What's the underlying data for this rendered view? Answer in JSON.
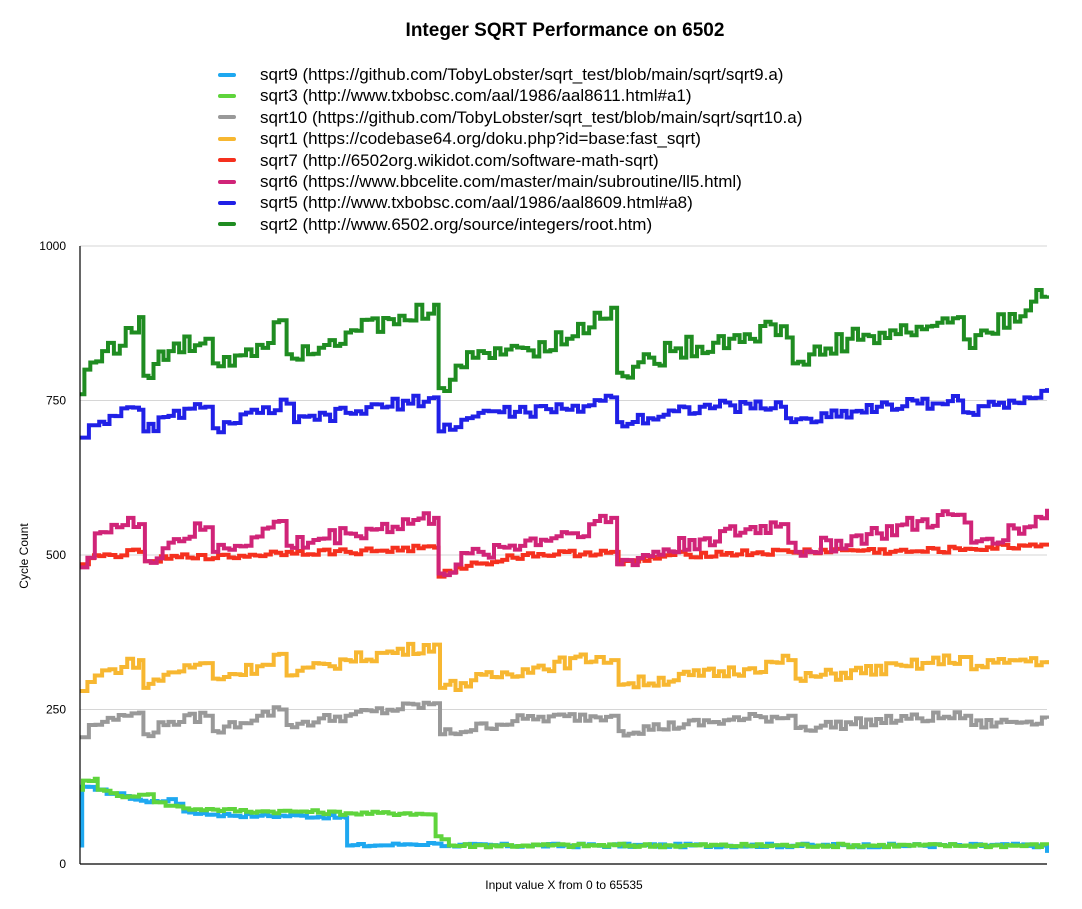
{
  "chart_data": {
    "type": "line",
    "title": "Integer SQRT Performance on 6502",
    "xlabel": "Input value X from 0 to 65535",
    "ylabel": "Cycle Count",
    "xlim": [
      0,
      65535
    ],
    "ylim": [
      0,
      1000
    ],
    "yticks": [
      "0",
      "250",
      "500",
      "750",
      "1000"
    ],
    "grid": true,
    "legend_position": "top",
    "series": [
      {
        "name": "sqrt9 (https://github.com/TobyLobster/sqrt_test/blob/main/sqrt/sqrt9.a)",
        "color": "#1ea8f0",
        "points": [
          [
            0,
            30
          ],
          [
            150,
            125
          ],
          [
            1000,
            120
          ],
          [
            3000,
            110
          ],
          [
            4500,
            100
          ],
          [
            6000,
            105
          ],
          [
            7000,
            85
          ],
          [
            9000,
            80
          ],
          [
            12000,
            78
          ],
          [
            15000,
            78
          ],
          [
            18000,
            75
          ],
          [
            18100,
            30
          ],
          [
            20000,
            30
          ],
          [
            22000,
            32
          ],
          [
            24000,
            33
          ],
          [
            25000,
            30
          ],
          [
            30000,
            30
          ],
          [
            40000,
            30
          ],
          [
            50000,
            30
          ],
          [
            60000,
            30
          ],
          [
            65000,
            30
          ],
          [
            65535,
            18
          ]
        ]
      },
      {
        "name": "sqrt3 (http://www.txbobsc.com/aal/1986/aal8611.html#a1)",
        "color": "#5fd43c",
        "points": [
          [
            0,
            120
          ],
          [
            200,
            135
          ],
          [
            1000,
            138
          ],
          [
            1200,
            120
          ],
          [
            2500,
            110
          ],
          [
            4000,
            112
          ],
          [
            4600,
            113
          ],
          [
            5000,
            100
          ],
          [
            7000,
            90
          ],
          [
            9000,
            88
          ],
          [
            12000,
            85
          ],
          [
            15000,
            85
          ],
          [
            18000,
            82
          ],
          [
            22000,
            82
          ],
          [
            24000,
            80
          ],
          [
            24100,
            45
          ],
          [
            24500,
            40
          ],
          [
            25000,
            30
          ],
          [
            30000,
            30
          ],
          [
            40000,
            30
          ],
          [
            50000,
            30
          ],
          [
            60000,
            30
          ],
          [
            65535,
            30
          ]
        ]
      },
      {
        "name": "sqrt10 (https://github.com/TobyLobster/sqrt_test/blob/main/sqrt/sqrt10.a)",
        "color": "#999999",
        "points": [
          [
            0,
            205
          ],
          [
            600,
            225
          ],
          [
            1500,
            230
          ],
          [
            3000,
            240
          ],
          [
            4000,
            245
          ],
          [
            4300,
            210
          ],
          [
            6000,
            230
          ],
          [
            8500,
            240
          ],
          [
            9000,
            215
          ],
          [
            12000,
            240
          ],
          [
            13500,
            250
          ],
          [
            14000,
            225
          ],
          [
            18000,
            240
          ],
          [
            24000,
            260
          ],
          [
            24400,
            210
          ],
          [
            30000,
            235
          ],
          [
            36000,
            240
          ],
          [
            36500,
            215
          ],
          [
            45000,
            235
          ],
          [
            48000,
            240
          ],
          [
            48500,
            220
          ],
          [
            56000,
            235
          ],
          [
            60000,
            240
          ],
          [
            60400,
            225
          ],
          [
            65535,
            235
          ]
        ]
      },
      {
        "name": "sqrt1 (https://codebase64.org/doku.php?id=base:fast_sqrt)",
        "color": "#f7b731",
        "points": [
          [
            0,
            280
          ],
          [
            1000,
            305
          ],
          [
            2000,
            315
          ],
          [
            4000,
            330
          ],
          [
            4300,
            285
          ],
          [
            6000,
            310
          ],
          [
            8500,
            325
          ],
          [
            9000,
            300
          ],
          [
            12000,
            320
          ],
          [
            13500,
            340
          ],
          [
            14000,
            305
          ],
          [
            18000,
            330
          ],
          [
            24000,
            355
          ],
          [
            24400,
            285
          ],
          [
            30000,
            315
          ],
          [
            35000,
            335
          ],
          [
            36000,
            330
          ],
          [
            36500,
            290
          ],
          [
            45000,
            315
          ],
          [
            48000,
            330
          ],
          [
            48500,
            300
          ],
          [
            56000,
            320
          ],
          [
            60000,
            335
          ],
          [
            60400,
            315
          ],
          [
            63000,
            330
          ],
          [
            65535,
            330
          ]
        ]
      },
      {
        "name": "sqrt7 (http://6502org.wikidot.com/software-math-sqrt)",
        "color": "#f5301e",
        "points": [
          [
            0,
            485
          ],
          [
            600,
            495
          ],
          [
            2000,
            500
          ],
          [
            4000,
            505
          ],
          [
            4400,
            490
          ],
          [
            8000,
            500
          ],
          [
            9000,
            495
          ],
          [
            14000,
            505
          ],
          [
            18000,
            505
          ],
          [
            24000,
            512
          ],
          [
            24300,
            465
          ],
          [
            25500,
            480
          ],
          [
            30000,
            500
          ],
          [
            36000,
            505
          ],
          [
            36500,
            485
          ],
          [
            40000,
            500
          ],
          [
            48000,
            505
          ],
          [
            52000,
            508
          ],
          [
            56000,
            505
          ],
          [
            60000,
            510
          ],
          [
            64000,
            515
          ],
          [
            65535,
            520
          ]
        ]
      },
      {
        "name": "sqrt6 (https://www.bbcelite.com/master/main/subroutine/ll5.html)",
        "color": "#d02478",
        "points": [
          [
            0,
            480
          ],
          [
            1000,
            535
          ],
          [
            2500,
            545
          ],
          [
            4000,
            550
          ],
          [
            4400,
            490
          ],
          [
            6000,
            520
          ],
          [
            8500,
            545
          ],
          [
            9000,
            505
          ],
          [
            12000,
            530
          ],
          [
            13500,
            555
          ],
          [
            14000,
            515
          ],
          [
            18000,
            535
          ],
          [
            24000,
            560
          ],
          [
            24300,
            470
          ],
          [
            27000,
            505
          ],
          [
            33000,
            535
          ],
          [
            36000,
            560
          ],
          [
            36400,
            485
          ],
          [
            42000,
            525
          ],
          [
            47500,
            550
          ],
          [
            48500,
            505
          ],
          [
            54000,
            535
          ],
          [
            59500,
            565
          ],
          [
            60400,
            520
          ],
          [
            64000,
            545
          ],
          [
            65535,
            575
          ]
        ]
      },
      {
        "name": "sqrt5 (http://www.txbobsc.com/aal/1986/aal8609.html#a8)",
        "color": "#2020e6",
        "points": [
          [
            0,
            690
          ],
          [
            600,
            710
          ],
          [
            2000,
            725
          ],
          [
            4000,
            735
          ],
          [
            4300,
            700
          ],
          [
            6000,
            725
          ],
          [
            8500,
            740
          ],
          [
            9000,
            705
          ],
          [
            12000,
            730
          ],
          [
            14000,
            745
          ],
          [
            14500,
            715
          ],
          [
            18000,
            730
          ],
          [
            24000,
            755
          ],
          [
            24300,
            700
          ],
          [
            27000,
            730
          ],
          [
            33000,
            735
          ],
          [
            36000,
            755
          ],
          [
            36400,
            715
          ],
          [
            42000,
            740
          ],
          [
            47500,
            740
          ],
          [
            48200,
            715
          ],
          [
            54000,
            740
          ],
          [
            59500,
            750
          ],
          [
            60200,
            730
          ],
          [
            64000,
            755
          ],
          [
            65535,
            770
          ]
        ]
      },
      {
        "name": "sqrt2 (http://www.6502.org/source/integers/root.htm)",
        "color": "#1f8c21",
        "points": [
          [
            0,
            760
          ],
          [
            300,
            800
          ],
          [
            1500,
            830
          ],
          [
            3500,
            860
          ],
          [
            4000,
            885
          ],
          [
            4300,
            790
          ],
          [
            6000,
            830
          ],
          [
            8500,
            850
          ],
          [
            9000,
            810
          ],
          [
            12000,
            840
          ],
          [
            13500,
            880
          ],
          [
            14000,
            825
          ],
          [
            18000,
            860
          ],
          [
            22000,
            880
          ],
          [
            24000,
            905
          ],
          [
            24300,
            770
          ],
          [
            27000,
            830
          ],
          [
            30000,
            835
          ],
          [
            33000,
            850
          ],
          [
            36000,
            900
          ],
          [
            36400,
            795
          ],
          [
            40000,
            830
          ],
          [
            44000,
            850
          ],
          [
            47500,
            870
          ],
          [
            48300,
            810
          ],
          [
            52000,
            850
          ],
          [
            56000,
            860
          ],
          [
            59500,
            885
          ],
          [
            60300,
            835
          ],
          [
            63000,
            890
          ],
          [
            65535,
            920
          ]
        ]
      }
    ]
  }
}
